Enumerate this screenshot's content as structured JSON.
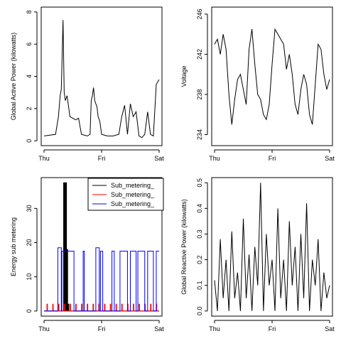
{
  "chart_data": [
    {
      "type": "line",
      "id": "global-active-power",
      "ylabel": "Global Active Power (kilowatts)",
      "xlabel": "",
      "x_ticks": [
        "Thu",
        "Fri",
        "Sat"
      ],
      "xlim": [
        0,
        2
      ],
      "ylim": [
        -0.3,
        8.3
      ],
      "y_ticks": [
        0,
        2,
        4,
        6,
        8
      ],
      "series": [
        {
          "color": "#000000",
          "x": [
            0.0,
            0.1,
            0.2,
            0.25,
            0.28,
            0.3,
            0.33,
            0.35,
            0.37,
            0.4,
            0.45,
            0.55,
            0.6,
            0.65,
            0.7,
            0.75,
            0.8,
            0.82,
            0.84,
            0.86,
            0.88,
            0.9,
            0.92,
            0.94,
            0.97,
            1.0,
            1.05,
            1.1,
            1.2,
            1.3,
            1.35,
            1.4,
            1.45,
            1.5,
            1.55,
            1.6,
            1.65,
            1.7,
            1.75,
            1.8,
            1.85,
            1.9,
            1.95,
            2.0
          ],
          "y": [
            0.3,
            0.35,
            0.4,
            1.5,
            2.8,
            3.2,
            7.5,
            3.0,
            2.5,
            2.8,
            1.5,
            1.3,
            1.4,
            0.4,
            0.35,
            0.3,
            0.4,
            2.5,
            2.8,
            3.3,
            2.5,
            2.3,
            2.1,
            1.5,
            1.2,
            0.4,
            0.35,
            0.3,
            0.3,
            0.4,
            1.5,
            2.2,
            0.4,
            2.3,
            1.5,
            1.8,
            0.3,
            0.2,
            0.4,
            1.8,
            0.4,
            0.3,
            3.5,
            3.8
          ]
        }
      ]
    },
    {
      "type": "line",
      "id": "voltage",
      "ylabel": "Voltage",
      "xlabel": "",
      "x_ticks": [
        "Thu",
        "Fri",
        "Sat"
      ],
      "xlim": [
        0,
        2
      ],
      "ylim": [
        232.9,
        246.7
      ],
      "y_ticks": [
        234,
        238,
        242,
        246
      ],
      "series": [
        {
          "color": "#000000",
          "x": [
            0.0,
            0.05,
            0.1,
            0.15,
            0.2,
            0.25,
            0.3,
            0.35,
            0.4,
            0.45,
            0.5,
            0.55,
            0.6,
            0.65,
            0.7,
            0.75,
            0.8,
            0.85,
            0.9,
            0.95,
            1.0,
            1.05,
            1.1,
            1.15,
            1.2,
            1.25,
            1.3,
            1.35,
            1.4,
            1.45,
            1.5,
            1.55,
            1.6,
            1.65,
            1.7,
            1.75,
            1.8,
            1.85,
            1.9,
            1.95,
            2.0
          ],
          "y": [
            243.0,
            243.5,
            242.0,
            244.0,
            242.5,
            238.0,
            235.0,
            237.5,
            239.5,
            240.0,
            238.5,
            237.0,
            242.5,
            244.5,
            241.0,
            238.0,
            237.5,
            236.0,
            235.5,
            237.0,
            241.0,
            244.5,
            244.0,
            243.5,
            243.0,
            240.5,
            242.0,
            240.0,
            237.0,
            236.0,
            238.5,
            240.0,
            239.0,
            236.0,
            235.0,
            239.0,
            243.0,
            242.5,
            240.0,
            238.5,
            239.5
          ]
        }
      ]
    },
    {
      "type": "line",
      "id": "energy-sub-metering",
      "ylabel": "Energy sub metering",
      "xlabel": "",
      "x_ticks": [
        "Thu",
        "Fri",
        "Sat"
      ],
      "xlim": [
        0,
        2
      ],
      "ylim": [
        -1.5,
        39.0
      ],
      "y_ticks": [
        0,
        10,
        20,
        30
      ],
      "legend_position": "top-right",
      "series": [
        {
          "name": "Sub_metering_",
          "color": "#000000",
          "x": [
            0.0,
            0.34,
            0.34,
            0.35,
            0.35,
            0.36,
            0.36,
            0.37,
            0.37,
            0.38,
            0.38,
            0.39,
            0.39,
            0.4,
            0.4,
            0.41,
            0.41,
            0.42,
            0.42,
            0.43,
            0.43,
            2.0
          ],
          "y": [
            0,
            0,
            37.5,
            37.5,
            0,
            0,
            37.5,
            37.5,
            0,
            0,
            37.5,
            37.5,
            0,
            0,
            18,
            18,
            0,
            0,
            2,
            2,
            0,
            0
          ]
        },
        {
          "name": "Sub_metering_",
          "color": "#ff0000",
          "x": [
            0.0,
            0.05,
            0.05,
            0.06,
            0.06,
            0.15,
            0.15,
            0.16,
            0.16,
            0.25,
            0.25,
            0.26,
            0.26,
            0.35,
            0.35,
            0.36,
            0.36,
            0.45,
            0.45,
            0.46,
            0.46,
            0.55,
            0.55,
            0.56,
            0.56,
            0.65,
            0.65,
            0.66,
            0.66,
            0.75,
            0.75,
            0.76,
            0.76,
            0.85,
            0.85,
            0.86,
            0.86,
            0.95,
            0.95,
            0.96,
            0.96,
            1.05,
            1.05,
            1.06,
            1.06,
            1.15,
            1.15,
            1.16,
            1.16,
            1.25,
            1.25,
            1.26,
            1.26,
            1.35,
            1.35,
            1.36,
            1.36,
            1.45,
            1.45,
            1.46,
            1.46,
            1.55,
            1.55,
            1.56,
            1.56,
            1.65,
            1.65,
            1.66,
            1.66,
            1.75,
            1.75,
            1.76,
            1.76,
            1.85,
            1.85,
            1.86,
            1.86,
            1.95,
            1.95,
            1.96,
            1.96,
            2.0
          ],
          "y": [
            0,
            0,
            2,
            2,
            0,
            0,
            2,
            2,
            0,
            0,
            2,
            2,
            0,
            0,
            2,
            2,
            0,
            0,
            2,
            2,
            0,
            0,
            2,
            2,
            0,
            0,
            2,
            2,
            0,
            0,
            2,
            2,
            0,
            0,
            2,
            2,
            0,
            0,
            2,
            2,
            0,
            0,
            2,
            2,
            0,
            0,
            2,
            2,
            0,
            0,
            2,
            2,
            0,
            0,
            2,
            2,
            0,
            0,
            2,
            2,
            0,
            0,
            2,
            2,
            0,
            0,
            2,
            2,
            0,
            0,
            2,
            2,
            0,
            0,
            2,
            2,
            0,
            0,
            2,
            2,
            0,
            0
          ]
        },
        {
          "name": "Sub_metering_",
          "color": "#0000ff",
          "x": [
            0.0,
            0.24,
            0.24,
            0.3,
            0.3,
            0.31,
            0.31,
            0.52,
            0.52,
            0.68,
            0.68,
            0.7,
            0.7,
            0.9,
            0.9,
            0.96,
            0.96,
            0.98,
            0.98,
            1.02,
            1.02,
            1.18,
            1.18,
            1.22,
            1.22,
            1.32,
            1.32,
            1.45,
            1.45,
            1.5,
            1.5,
            1.6,
            1.6,
            1.63,
            1.63,
            1.75,
            1.75,
            1.8,
            1.8,
            1.9,
            1.9,
            1.95,
            1.95,
            2.0
          ],
          "y": [
            0,
            0,
            18.5,
            18.5,
            0,
            0,
            17.5,
            17.5,
            0,
            0,
            17.5,
            17.5,
            0,
            0,
            18.5,
            18.5,
            0,
            0,
            17.5,
            17.5,
            0,
            0,
            17.5,
            17.5,
            0,
            0,
            17.5,
            17.5,
            0,
            0,
            17.5,
            17.5,
            0,
            0,
            17.5,
            17.5,
            0,
            0,
            17.5,
            17.5,
            0,
            0,
            17.5,
            17.5
          ]
        }
      ]
    },
    {
      "type": "line",
      "id": "global-reactive-power",
      "ylabel": "Global Reactive Power (kilowatts)",
      "xlabel": "",
      "x_ticks": [
        "Thu",
        "Fri",
        "Sat"
      ],
      "xlim": [
        0,
        2
      ],
      "ylim": [
        -0.02,
        0.52
      ],
      "y_ticks": [
        0.0,
        0.1,
        0.2,
        0.3,
        0.4,
        0.5
      ],
      "y_tick_labels": [
        "0.0",
        "0.1",
        "0.2",
        "0.3",
        "0.4",
        "0.5"
      ],
      "series": [
        {
          "color": "#000000",
          "x": [
            0.0,
            0.05,
            0.1,
            0.15,
            0.2,
            0.25,
            0.3,
            0.35,
            0.4,
            0.45,
            0.5,
            0.55,
            0.6,
            0.65,
            0.7,
            0.75,
            0.8,
            0.85,
            0.9,
            0.95,
            1.0,
            1.05,
            1.1,
            1.15,
            1.2,
            1.25,
            1.3,
            1.35,
            1.4,
            1.45,
            1.5,
            1.55,
            1.6,
            1.65,
            1.7,
            1.75,
            1.8,
            1.85,
            1.9,
            1.95,
            2.0
          ],
          "y": [
            0.12,
            0.0,
            0.28,
            0.05,
            0.2,
            0.0,
            0.31,
            0.05,
            0.15,
            0.0,
            0.36,
            0.05,
            0.22,
            0.0,
            0.25,
            0.1,
            0.5,
            0.0,
            0.3,
            0.1,
            0.2,
            0.0,
            0.4,
            0.05,
            0.2,
            0.0,
            0.35,
            0.1,
            0.25,
            0.0,
            0.3,
            0.05,
            0.42,
            0.0,
            0.2,
            0.1,
            0.28,
            0.0,
            0.15,
            0.05,
            0.1
          ]
        }
      ]
    }
  ]
}
